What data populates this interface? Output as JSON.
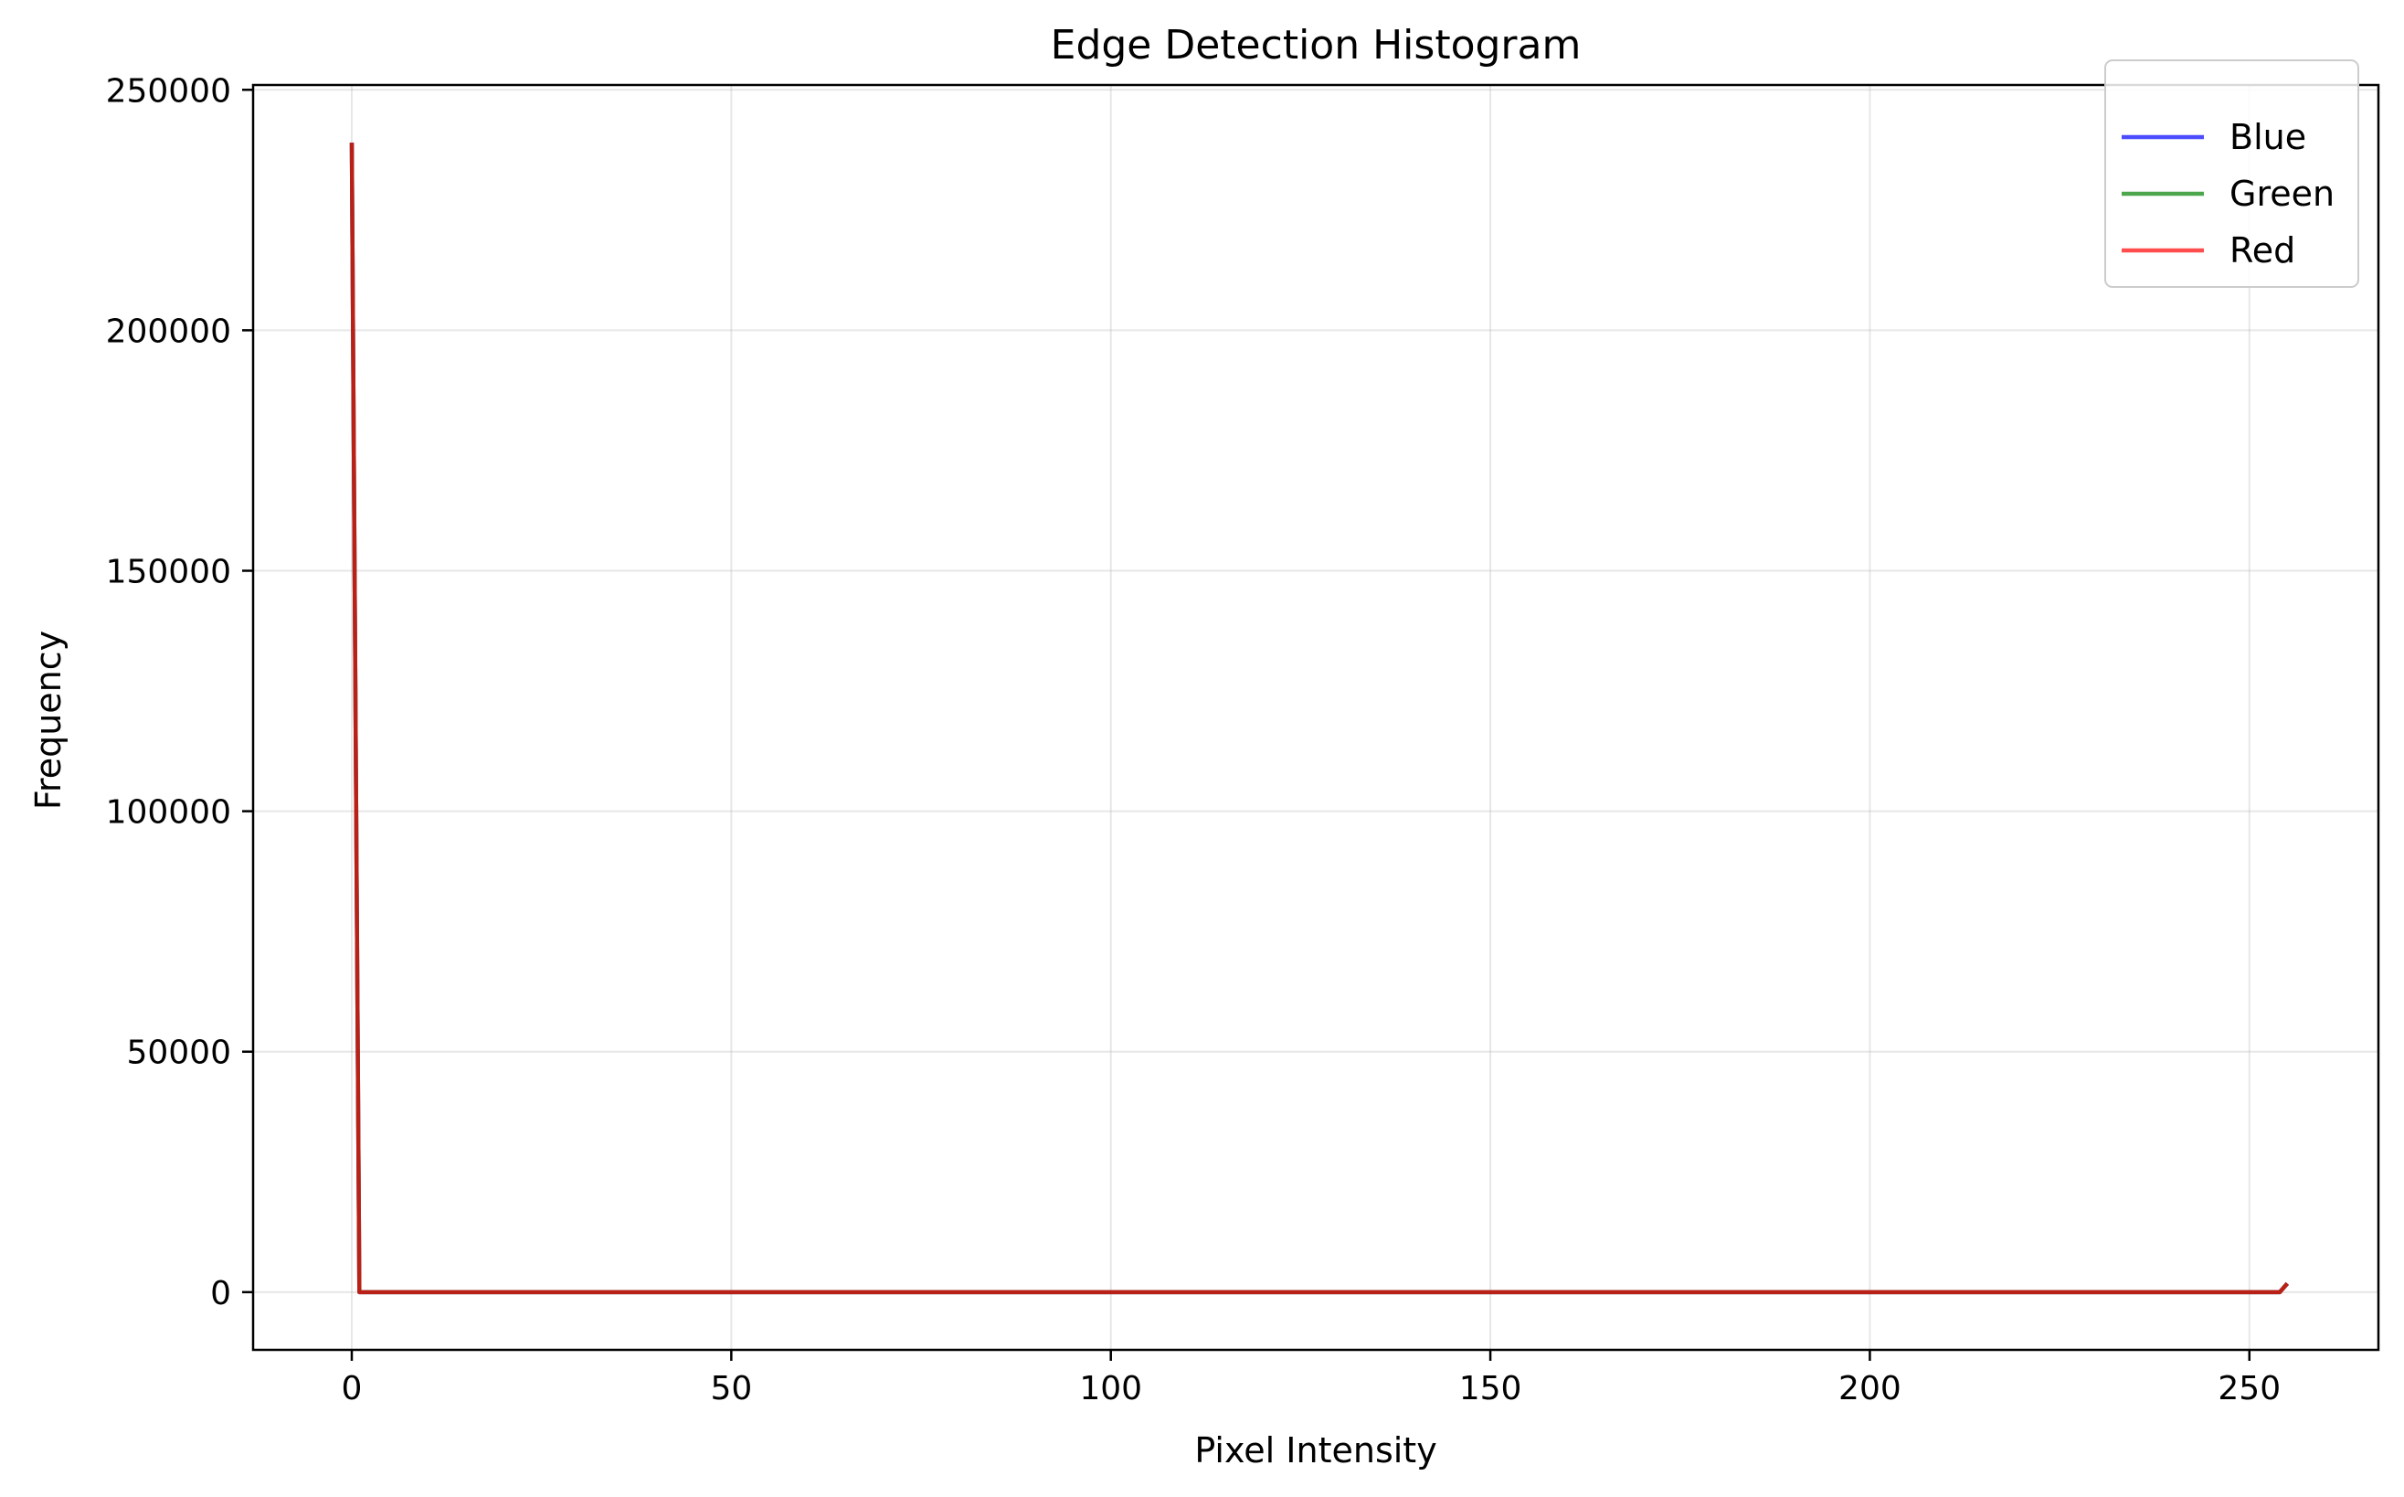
{
  "chart_data": {
    "type": "line",
    "title": "Edge Detection Histogram",
    "xlabel": "Pixel Intensity",
    "ylabel": "Frequency",
    "xlim": [
      -13,
      267
    ],
    "ylim": [
      -12000,
      251000
    ],
    "xticks": [
      0,
      50,
      100,
      150,
      200,
      250
    ],
    "yticks": [
      0,
      50000,
      100000,
      150000,
      200000,
      250000
    ],
    "grid": true,
    "legend_position": "top-right",
    "series": [
      {
        "name": "Blue",
        "color": "#0000ff",
        "points": [
          [
            0,
            239000
          ],
          [
            1,
            0
          ],
          [
            254,
            0
          ],
          [
            255,
            1800
          ]
        ]
      },
      {
        "name": "Green",
        "color": "#008000",
        "points": [
          [
            0,
            239000
          ],
          [
            1,
            0
          ],
          [
            254,
            0
          ],
          [
            255,
            1800
          ]
        ]
      },
      {
        "name": "Red",
        "color": "#ff0000",
        "points": [
          [
            0,
            239000
          ],
          [
            1,
            0
          ],
          [
            254,
            0
          ],
          [
            255,
            1800
          ]
        ]
      }
    ]
  }
}
